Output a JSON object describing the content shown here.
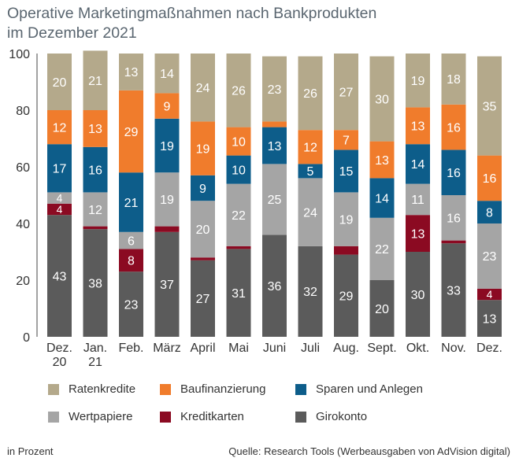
{
  "title_lines": [
    "Operative Marketingmaßnahmen nach Bankprodukten",
    "im Dezember 2021"
  ],
  "footer": {
    "unit": "in Prozent",
    "source": "Quelle: Research Tools (Werbeausgaben von AdVision digital)"
  },
  "chart_data": {
    "type": "bar",
    "stacked": true,
    "title": "Operative Marketingmaßnahmen nach Bankprodukten im Dezember 2021",
    "categories": [
      [
        "Dez.",
        "20"
      ],
      [
        "Jan.",
        "21"
      ],
      [
        "Feb."
      ],
      [
        "März"
      ],
      [
        "April"
      ],
      [
        "Mai"
      ],
      [
        "Juni"
      ],
      [
        "Juli"
      ],
      [
        "Aug."
      ],
      [
        "Sept."
      ],
      [
        "Okt."
      ],
      [
        "Nov."
      ],
      [
        "Dez."
      ]
    ],
    "ylim": [
      0,
      100
    ],
    "yticks": [
      0,
      20,
      40,
      60,
      80,
      100
    ],
    "grid": false,
    "legend_position": "bottom",
    "series": [
      {
        "name": "Girokonto",
        "color": "#5b5b5b",
        "values": [
          43,
          38,
          23,
          37,
          27,
          31,
          36,
          32,
          29,
          20,
          30,
          33,
          13
        ],
        "label_color": "#ffffff"
      },
      {
        "name": "Kreditkarten",
        "color": "#8b0a22",
        "values": [
          4,
          1,
          8,
          2,
          1,
          1,
          0,
          0,
          3,
          0,
          13,
          1,
          4
        ],
        "label_color": "#ffffff",
        "labels": [
          "4",
          "",
          "8",
          "",
          "",
          "",
          "",
          "",
          "",
          "",
          "13",
          "",
          "4"
        ]
      },
      {
        "name": "Wertpapiere",
        "color": "#a5a5a5",
        "values": [
          4,
          12,
          6,
          19,
          20,
          22,
          25,
          24,
          19,
          22,
          11,
          16,
          23
        ],
        "label_color": "#ffffff"
      },
      {
        "name": "Sparen und Anlegen",
        "color": "#0d5d8a",
        "values": [
          17,
          16,
          21,
          19,
          9,
          10,
          13,
          5,
          15,
          14,
          14,
          16,
          8
        ],
        "label_color": "#ffffff"
      },
      {
        "name": "Baufinanzierung",
        "color": "#f07c2c",
        "values": [
          12,
          13,
          29,
          9,
          19,
          10,
          2,
          12,
          7,
          13,
          13,
          16,
          16
        ],
        "label_color": "#ffffff",
        "labels": [
          "12",
          "13",
          "29",
          "9",
          "19",
          "10",
          "",
          "12",
          "7",
          "13",
          "13",
          "16",
          "16"
        ]
      },
      {
        "name": "Ratenkredite",
        "color": "#b4a98b",
        "values": [
          20,
          21,
          13,
          14,
          24,
          26,
          23,
          26,
          27,
          30,
          19,
          18,
          35
        ],
        "label_color": "#ffffff"
      }
    ]
  },
  "legend_rows": [
    [
      "Ratenkredite",
      "Baufinanzierung",
      "Sparen und Anlegen"
    ],
    [
      "Wertpapiere",
      "Kreditkarten",
      "Girokonto"
    ]
  ],
  "legend_colors": {
    "Ratenkredite": "#b4a98b",
    "Baufinanzierung": "#f07c2c",
    "Sparen und Anlegen": "#0d5d8a",
    "Wertpapiere": "#a5a5a5",
    "Kreditkarten": "#8b0a22",
    "Girokonto": "#5b5b5b"
  }
}
